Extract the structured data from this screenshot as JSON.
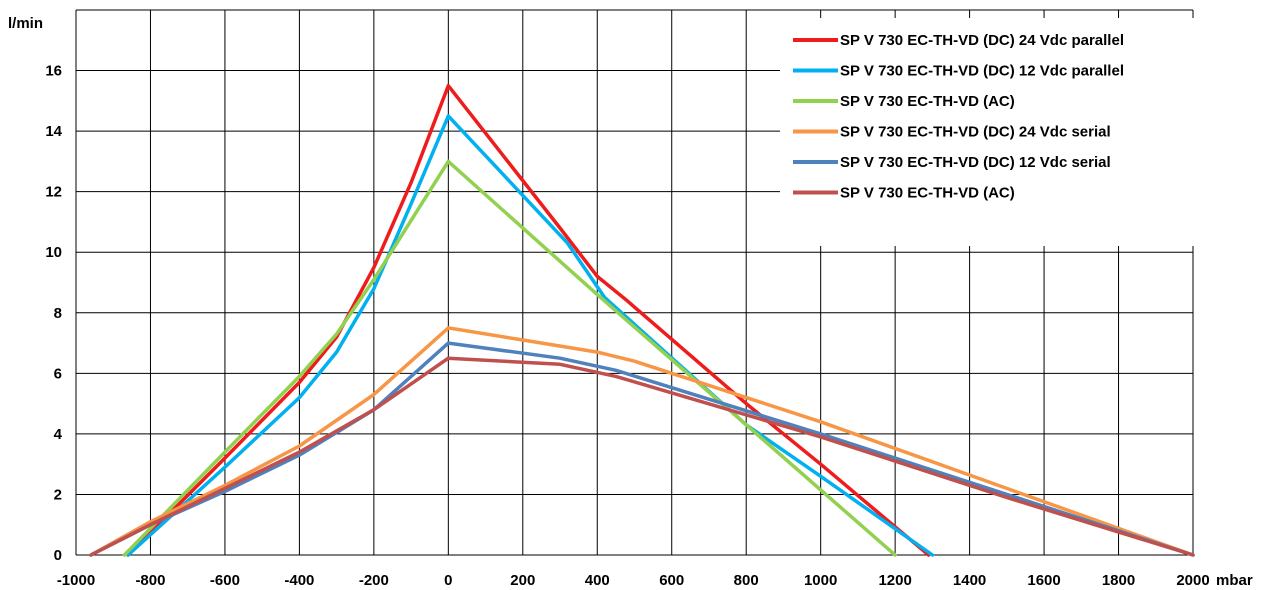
{
  "chart_data": {
    "type": "line",
    "title": "",
    "ylabel": "l/min",
    "xlabel": "mbar",
    "xlim": [
      -1000,
      2000
    ],
    "ylim": [
      0,
      18
    ],
    "x_ticks": [
      -1000,
      -800,
      -600,
      -400,
      -200,
      0,
      200,
      400,
      600,
      800,
      1000,
      1200,
      1400,
      1600,
      1800,
      2000
    ],
    "y_ticks": [
      0,
      2,
      4,
      6,
      8,
      10,
      12,
      14,
      16
    ],
    "x_tick_labels": [
      "-1000",
      "-800",
      "-600",
      "-400",
      "-200",
      "0",
      "200",
      "400",
      "600",
      "800",
      "1000",
      "1200",
      "1400",
      "1600",
      "1800",
      "2000"
    ],
    "y_tick_labels": [
      "0",
      "2",
      "4",
      "6",
      "8",
      "10",
      "12",
      "14",
      "16"
    ],
    "grid": true,
    "legend_position": "top-right",
    "series": [
      {
        "name": "SP V 730 EC-TH-VD (DC) 24 Vdc parallel",
        "color": "#ee1c1c",
        "points": [
          [
            -860,
            0
          ],
          [
            -600,
            3.2
          ],
          [
            -400,
            5.7
          ],
          [
            -300,
            7.2
          ],
          [
            -200,
            9.5
          ],
          [
            -100,
            12.3
          ],
          [
            0,
            15.5
          ],
          [
            300,
            10.8
          ],
          [
            400,
            9.2
          ],
          [
            480,
            8.4
          ],
          [
            800,
            5.0
          ],
          [
            1000,
            3.0
          ],
          [
            1290,
            0
          ]
        ]
      },
      {
        "name": "SP V 730 EC-TH-VD (DC) 12 Vdc parallel",
        "color": "#00b0f0",
        "points": [
          [
            -860,
            0
          ],
          [
            -600,
            2.9
          ],
          [
            -400,
            5.2
          ],
          [
            -300,
            6.7
          ],
          [
            -200,
            8.8
          ],
          [
            -100,
            11.6
          ],
          [
            0,
            14.5
          ],
          [
            320,
            10.3
          ],
          [
            420,
            8.5
          ],
          [
            800,
            4.3
          ],
          [
            1000,
            2.6
          ],
          [
            1300,
            0
          ]
        ]
      },
      {
        "name": "SP V 730 EC-TH-VD (AC)",
        "color": "#92d050",
        "points": [
          [
            -870,
            0
          ],
          [
            -600,
            3.4
          ],
          [
            -400,
            5.9
          ],
          [
            -300,
            7.3
          ],
          [
            -200,
            9.1
          ],
          [
            0,
            13.0
          ],
          [
            400,
            8.6
          ],
          [
            1200,
            0
          ]
        ]
      },
      {
        "name": "SP V 730 EC-TH-VD (DC) 24 Vdc serial",
        "color": "#f79646",
        "points": [
          [
            -960,
            0
          ],
          [
            -800,
            1.1
          ],
          [
            -600,
            2.3
          ],
          [
            -400,
            3.6
          ],
          [
            -200,
            5.3
          ],
          [
            0,
            7.5
          ],
          [
            200,
            7.1
          ],
          [
            400,
            6.7
          ],
          [
            500,
            6.4
          ],
          [
            1000,
            4.4
          ],
          [
            1500,
            2.2
          ],
          [
            2000,
            0
          ]
        ]
      },
      {
        "name": "SP V 730 EC-TH-VD (DC) 12 Vdc serial",
        "color": "#4f81bd",
        "points": [
          [
            -960,
            0
          ],
          [
            -800,
            1.0
          ],
          [
            -600,
            2.1
          ],
          [
            -400,
            3.3
          ],
          [
            -200,
            4.8
          ],
          [
            0,
            7.0
          ],
          [
            300,
            6.5
          ],
          [
            450,
            6.1
          ],
          [
            1000,
            4.0
          ],
          [
            1500,
            2.0
          ],
          [
            2000,
            0
          ]
        ]
      },
      {
        "name": "SP V 730 EC-TH-VD (AC)",
        "color": "#c0504d",
        "points": [
          [
            -960,
            0
          ],
          [
            -800,
            1.0
          ],
          [
            -600,
            2.2
          ],
          [
            -400,
            3.4
          ],
          [
            -200,
            4.8
          ],
          [
            0,
            6.5
          ],
          [
            300,
            6.3
          ],
          [
            450,
            5.9
          ],
          [
            1000,
            3.9
          ],
          [
            1500,
            1.9
          ],
          [
            2000,
            0
          ]
        ]
      }
    ]
  }
}
